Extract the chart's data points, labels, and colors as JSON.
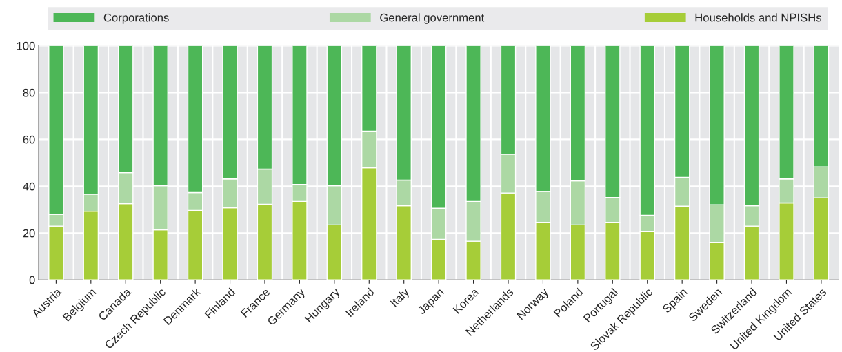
{
  "chart_data": {
    "type": "bar",
    "stacked": true,
    "categories": [
      "Austria",
      "Belgium",
      "Canada",
      "Czech Republic",
      "Denmark",
      "Finland",
      "France",
      "Germany",
      "Hungary",
      "Ireland",
      "Italy",
      "Japan",
      "Korea",
      "Netherlands",
      "Norway",
      "Poland",
      "Portugal",
      "Slovak Republic",
      "Spain",
      "Sweden",
      "Switzerland",
      "United Kingdom",
      "United States"
    ],
    "series": [
      {
        "name": "Households and NPISHs",
        "color": "#a6cd38",
        "values": [
          23,
          29.3,
          32.6,
          21.4,
          29.7,
          30.8,
          32.3,
          33.5,
          23.5,
          47.9,
          31.7,
          17.3,
          16.5,
          37.1,
          24.4,
          23.5,
          24.4,
          20.6,
          31.5,
          15.9,
          23,
          32.9,
          35
        ]
      },
      {
        "name": "General government",
        "color": "#acd8a4",
        "values": [
          5,
          7.3,
          13.2,
          18.8,
          7.6,
          12.3,
          15,
          7.3,
          16.7,
          15.6,
          10.9,
          13.3,
          17,
          16.6,
          13.3,
          18.8,
          10.8,
          7,
          12.3,
          16.2,
          8.7,
          10.2,
          13.3
        ]
      },
      {
        "name": "Corporations",
        "color": "#4db757",
        "values": [
          72,
          63.4,
          54.2,
          59.8,
          62.7,
          56.9,
          52.7,
          59.2,
          59.8,
          36.5,
          57.4,
          69.4,
          66.5,
          46.3,
          62.3,
          57.7,
          64.8,
          72.4,
          56.2,
          67.9,
          68.3,
          56.9,
          51.7
        ]
      }
    ],
    "ylim": [
      0,
      100
    ],
    "yticks": [
      0,
      20,
      40,
      60,
      80,
      100
    ],
    "grid": true,
    "legend": "top"
  }
}
